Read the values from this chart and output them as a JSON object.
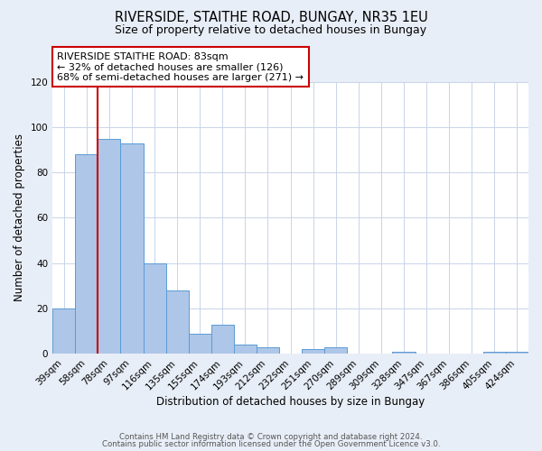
{
  "title": "RIVERSIDE, STAITHE ROAD, BUNGAY, NR35 1EU",
  "subtitle": "Size of property relative to detached houses in Bungay",
  "xlabel": "Distribution of detached houses by size in Bungay",
  "ylabel": "Number of detached properties",
  "bar_labels": [
    "39sqm",
    "58sqm",
    "78sqm",
    "97sqm",
    "116sqm",
    "135sqm",
    "155sqm",
    "174sqm",
    "193sqm",
    "212sqm",
    "232sqm",
    "251sqm",
    "270sqm",
    "289sqm",
    "309sqm",
    "328sqm",
    "347sqm",
    "367sqm",
    "386sqm",
    "405sqm",
    "424sqm"
  ],
  "bar_values": [
    20,
    88,
    95,
    93,
    40,
    28,
    9,
    13,
    4,
    3,
    0,
    2,
    3,
    0,
    0,
    1,
    0,
    0,
    0,
    1,
    1
  ],
  "bar_color": "#aec6e8",
  "bar_edge_color": "#5b9bd5",
  "ylim": [
    0,
    120
  ],
  "yticks": [
    0,
    20,
    40,
    60,
    80,
    100,
    120
  ],
  "vline_x_index": 2,
  "vline_color": "#cc0000",
  "annotation_title": "RIVERSIDE STAITHE ROAD: 83sqm",
  "annotation_line1": "← 32% of detached houses are smaller (126)",
  "annotation_line2": "68% of semi-detached houses are larger (271) →",
  "annotation_box_color": "#ffffff",
  "annotation_box_edge": "#cc0000",
  "footer1": "Contains HM Land Registry data © Crown copyright and database right 2024.",
  "footer2": "Contains public sector information licensed under the Open Government Licence v3.0.",
  "background_color": "#e8eef7",
  "plot_background_color": "#ffffff",
  "grid_color": "#c8d4e8"
}
